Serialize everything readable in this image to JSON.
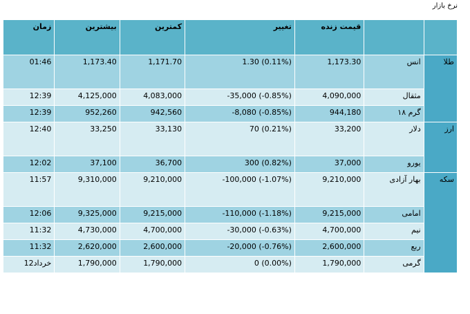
{
  "page_title": "نرخ بازار",
  "headers": {
    "time": "زمان",
    "high": "بیشترین",
    "low": "کمترین",
    "change": "تغییر",
    "live_price": "قیمت زنده",
    "item": "",
    "group": ""
  },
  "groups": [
    "طلا",
    "ارز",
    "سکه"
  ],
  "rows": [
    {
      "name": "انس",
      "price": "1,173.30",
      "change": "1.30 (0.11%)",
      "low": "1,171.70",
      "high": "1,173.40",
      "time": "01:46"
    },
    {
      "name": "مثقال",
      "price": "4,090,000",
      "change": "-35,000 (-0.85%)",
      "low": "4,083,000",
      "high": "4,125,000",
      "time": "12:39"
    },
    {
      "name": "گرم ۱۸",
      "price": "944,180",
      "change": "-8,080 (-0.85%)",
      "low": "942,560",
      "high": "952,260",
      "time": "12:39"
    },
    {
      "name": "دلار",
      "price": "33,200",
      "change": "70 (0.21%)",
      "low": "33,130",
      "high": "33,250",
      "time": "12:40"
    },
    {
      "name": "یورو",
      "price": "37,000",
      "change": "300 (0.82%)",
      "low": "36,700",
      "high": "37,100",
      "time": "12:02"
    },
    {
      "name": "بهار آزادی",
      "price": "9,210,000",
      "change": "-100,000 (-1.07%)",
      "low": "9,210,000",
      "high": "9,310,000",
      "time": "11:57"
    },
    {
      "name": "امامی",
      "price": "9,215,000",
      "change": "-110,000 (-1.18%)",
      "low": "9,215,000",
      "high": "9,325,000",
      "time": "12:06"
    },
    {
      "name": "نیم",
      "price": "4,700,000",
      "change": "-30,000 (-0.63%)",
      "low": "4,700,000",
      "high": "4,730,000",
      "time": "11:32"
    },
    {
      "name": "ربع",
      "price": "2,600,000",
      "change": "-20,000 (-0.76%)",
      "low": "2,600,000",
      "high": "2,620,000",
      "time": "11:32"
    },
    {
      "name": "گرمی",
      "price": "1,790,000",
      "change": "0 (0.00%)",
      "low": "1,790,000",
      "high": "1,790,000",
      "time": "12خرداد"
    }
  ],
  "colors": {
    "header": "#5ab3c9",
    "group": "#4aa9c6",
    "row_dark": "#9fd3e2",
    "row_light": "#d6ecf2"
  }
}
